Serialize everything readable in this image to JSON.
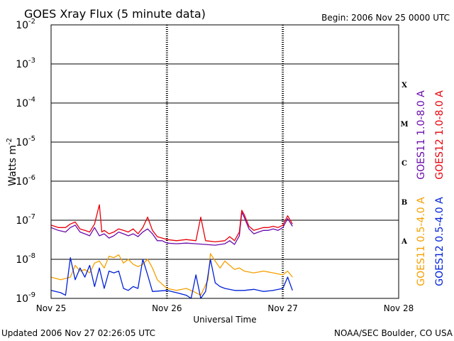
{
  "chart_data": {
    "type": "line",
    "title": "GOES Xray Flux (5 minute data)",
    "begin_label": "Begin:  2006 Nov 25 0000 UTC",
    "xlabel": "Universal Time",
    "ylabel_base": "Watts m",
    "ylabel_exp": "-2",
    "footer_left": "Updated 2006 Nov 27 02:26:05 UTC",
    "footer_right": "NOAA/SEC Boulder, CO USA",
    "scale": "log",
    "ylim": [
      1e-09,
      0.01
    ],
    "xlim": [
      "2006-11-25 00:00",
      "2006-11-28 00:00"
    ],
    "x_ticks": [
      "Nov 25",
      "Nov 26",
      "Nov 27",
      "Nov 28"
    ],
    "y_ticks": [
      {
        "value": 1e-09,
        "base": "10",
        "exp": "-9"
      },
      {
        "value": 1e-08,
        "base": "10",
        "exp": "-8"
      },
      {
        "value": 1e-07,
        "base": "10",
        "exp": "-7"
      },
      {
        "value": 1e-06,
        "base": "10",
        "exp": "-6"
      },
      {
        "value": 1e-05,
        "base": "10",
        "exp": "-5"
      },
      {
        "value": 0.0001,
        "base": "10",
        "exp": "-4"
      },
      {
        "value": 0.001,
        "base": "10",
        "exp": "-3"
      },
      {
        "value": 0.01,
        "base": "10",
        "exp": "-2"
      }
    ],
    "flare_classes": [
      {
        "label": "A",
        "level": 3e-08
      },
      {
        "label": "B",
        "level": 3e-07
      },
      {
        "label": "C",
        "level": 3e-06
      },
      {
        "label": "M",
        "level": 3e-05
      },
      {
        "label": "X",
        "level": 0.0003
      }
    ],
    "grid": "horizontal lines at each decade from 1e-8 to 1e-3; dotted vertical lines at day boundaries",
    "series": [
      {
        "name": "GOES11 1.0-8.0 A",
        "color": "#6a0dad",
        "points": [
          [
            "2006-11-25 00:00",
            6.5e-08
          ],
          [
            "2006-11-25 01:30",
            5.5e-08
          ],
          [
            "2006-11-25 03:00",
            5e-08
          ],
          [
            "2006-11-25 04:00",
            6.5e-08
          ],
          [
            "2006-11-25 05:00",
            7.5e-08
          ],
          [
            "2006-11-25 06:00",
            5e-08
          ],
          [
            "2006-11-25 07:00",
            4.5e-08
          ],
          [
            "2006-11-25 08:00",
            4e-08
          ],
          [
            "2006-11-25 09:00",
            6.5e-08
          ],
          [
            "2006-11-25 10:00",
            4e-08
          ],
          [
            "2006-11-25 11:00",
            4.5e-08
          ],
          [
            "2006-11-25 12:00",
            3.5e-08
          ],
          [
            "2006-11-25 13:00",
            4e-08
          ],
          [
            "2006-11-25 14:00",
            5e-08
          ],
          [
            "2006-11-25 15:00",
            4.5e-08
          ],
          [
            "2006-11-25 16:00",
            4e-08
          ],
          [
            "2006-11-25 17:00",
            4.5e-08
          ],
          [
            "2006-11-25 18:00",
            3.8e-08
          ],
          [
            "2006-11-25 19:00",
            5e-08
          ],
          [
            "2006-11-25 20:00",
            6e-08
          ],
          [
            "2006-11-25 21:00",
            4.5e-08
          ],
          [
            "2006-11-25 22:00",
            3e-08
          ],
          [
            "2006-11-25 23:00",
            3e-08
          ],
          [
            "2006-11-26 00:00",
            2.6e-08
          ],
          [
            "2006-11-26 02:00",
            2.5e-08
          ],
          [
            "2006-11-26 04:00",
            2.6e-08
          ],
          [
            "2006-11-26 06:00",
            2.5e-08
          ],
          [
            "2006-11-26 08:00",
            2.4e-08
          ],
          [
            "2006-11-26 10:00",
            2.3e-08
          ],
          [
            "2006-11-26 12:00",
            2.5e-08
          ],
          [
            "2006-11-26 13:00",
            3e-08
          ],
          [
            "2006-11-26 14:00",
            2.4e-08
          ],
          [
            "2006-11-26 15:00",
            4e-08
          ],
          [
            "2006-11-26 15:30",
            1.6e-07
          ],
          [
            "2006-11-26 16:00",
            1.2e-07
          ],
          [
            "2006-11-26 17:00",
            6e-08
          ],
          [
            "2006-11-26 18:00",
            4.5e-08
          ],
          [
            "2006-11-26 19:00",
            5e-08
          ],
          [
            "2006-11-26 20:00",
            5.5e-08
          ],
          [
            "2006-11-26 21:00",
            5.5e-08
          ],
          [
            "2006-11-26 22:00",
            6e-08
          ],
          [
            "2006-11-26 23:00",
            5.5e-08
          ],
          [
            "2006-11-27 00:00",
            6.5e-08
          ],
          [
            "2006-11-27 01:00",
            1.1e-07
          ],
          [
            "2006-11-27 02:00",
            7e-08
          ]
        ]
      },
      {
        "name": "GOES12 1.0-8.0 A",
        "color": "#e8000b",
        "points": [
          [
            "2006-11-25 00:00",
            7.5e-08
          ],
          [
            "2006-11-25 01:30",
            6.5e-08
          ],
          [
            "2006-11-25 03:00",
            6.5e-08
          ],
          [
            "2006-11-25 04:00",
            8e-08
          ],
          [
            "2006-11-25 05:00",
            9e-08
          ],
          [
            "2006-11-25 06:00",
            6e-08
          ],
          [
            "2006-11-25 07:00",
            5.5e-08
          ],
          [
            "2006-11-25 08:00",
            5e-08
          ],
          [
            "2006-11-25 09:00",
            8e-08
          ],
          [
            "2006-11-25 10:00",
            2.5e-07
          ],
          [
            "2006-11-25 10:30",
            5e-08
          ],
          [
            "2006-11-25 11:00",
            5.5e-08
          ],
          [
            "2006-11-25 12:00",
            4.5e-08
          ],
          [
            "2006-11-25 13:00",
            5e-08
          ],
          [
            "2006-11-25 14:00",
            6e-08
          ],
          [
            "2006-11-25 15:00",
            5.5e-08
          ],
          [
            "2006-11-25 16:00",
            5e-08
          ],
          [
            "2006-11-25 17:00",
            6e-08
          ],
          [
            "2006-11-25 18:00",
            4.5e-08
          ],
          [
            "2006-11-25 19:00",
            6.5e-08
          ],
          [
            "2006-11-25 20:00",
            1.2e-07
          ],
          [
            "2006-11-25 21:00",
            5.5e-08
          ],
          [
            "2006-11-25 22:00",
            3.8e-08
          ],
          [
            "2006-11-25 23:00",
            3.5e-08
          ],
          [
            "2006-11-26 00:00",
            3.2e-08
          ],
          [
            "2006-11-26 02:00",
            3e-08
          ],
          [
            "2006-11-26 04:00",
            3.2e-08
          ],
          [
            "2006-11-26 06:00",
            3e-08
          ],
          [
            "2006-11-26 07:00",
            1.2e-07
          ],
          [
            "2006-11-26 08:00",
            3e-08
          ],
          [
            "2006-11-26 10:00",
            2.8e-08
          ],
          [
            "2006-11-26 12:00",
            3e-08
          ],
          [
            "2006-11-26 13:00",
            3.8e-08
          ],
          [
            "2006-11-26 14:00",
            3e-08
          ],
          [
            "2006-11-26 15:00",
            5e-08
          ],
          [
            "2006-11-26 15:30",
            1.8e-07
          ],
          [
            "2006-11-26 16:00",
            1.4e-07
          ],
          [
            "2006-11-26 17:00",
            7e-08
          ],
          [
            "2006-11-26 18:00",
            5.5e-08
          ],
          [
            "2006-11-26 19:00",
            6e-08
          ],
          [
            "2006-11-26 20:00",
            6.5e-08
          ],
          [
            "2006-11-26 21:00",
            6.5e-08
          ],
          [
            "2006-11-26 22:00",
            7e-08
          ],
          [
            "2006-11-26 23:00",
            6.5e-08
          ],
          [
            "2006-11-27 00:00",
            7.5e-08
          ],
          [
            "2006-11-27 01:00",
            1.3e-07
          ],
          [
            "2006-11-27 02:00",
            8e-08
          ]
        ]
      },
      {
        "name": "GOES11 0.5-4.0 A",
        "color": "#f5a000",
        "points": [
          [
            "2006-11-25 00:00",
            3.5e-09
          ],
          [
            "2006-11-25 02:00",
            3e-09
          ],
          [
            "2006-11-25 04:00",
            3.5e-09
          ],
          [
            "2006-11-25 05:00",
            7e-09
          ],
          [
            "2006-11-25 06:00",
            5e-09
          ],
          [
            "2006-11-25 07:00",
            5.5e-09
          ],
          [
            "2006-11-25 08:00",
            4.5e-09
          ],
          [
            "2006-11-25 09:00",
            8e-09
          ],
          [
            "2006-11-25 10:00",
            9e-09
          ],
          [
            "2006-11-25 11:00",
            6e-09
          ],
          [
            "2006-11-25 12:00",
            1.2e-08
          ],
          [
            "2006-11-25 13:00",
            1.1e-08
          ],
          [
            "2006-11-25 14:00",
            1.3e-08
          ],
          [
            "2006-11-25 15:00",
            8e-09
          ],
          [
            "2006-11-25 16:00",
            1e-08
          ],
          [
            "2006-11-25 17:00",
            7.5e-09
          ],
          [
            "2006-11-25 18:00",
            6.5e-09
          ],
          [
            "2006-11-25 19:00",
            7.5e-09
          ],
          [
            "2006-11-25 20:00",
            1e-08
          ],
          [
            "2006-11-25 21:00",
            6e-09
          ],
          [
            "2006-11-25 22:00",
            3e-09
          ],
          [
            "2006-11-26 00:00",
            1.8e-09
          ],
          [
            "2006-11-26 02:00",
            1.6e-09
          ],
          [
            "2006-11-26 04:00",
            1.8e-09
          ],
          [
            "2006-11-26 05:30",
            1.5e-09
          ],
          [
            "2006-11-26 07:00",
            1.2e-09
          ],
          [
            "2006-11-26 08:30",
            3e-09
          ],
          [
            "2006-11-26 09:00",
            1.4e-08
          ],
          [
            "2006-11-26 10:00",
            9e-09
          ],
          [
            "2006-11-26 11:00",
            6e-09
          ],
          [
            "2006-11-26 12:00",
            9e-09
          ],
          [
            "2006-11-26 13:00",
            7e-09
          ],
          [
            "2006-11-26 14:00",
            5.5e-09
          ],
          [
            "2006-11-26 15:00",
            6e-09
          ],
          [
            "2006-11-26 16:00",
            5e-09
          ],
          [
            "2006-11-26 18:00",
            4.5e-09
          ],
          [
            "2006-11-26 20:00",
            5e-09
          ],
          [
            "2006-11-26 22:00",
            4.5e-09
          ],
          [
            "2006-11-27 00:00",
            4e-09
          ],
          [
            "2006-11-27 01:00",
            5e-09
          ],
          [
            "2006-11-27 02:00",
            3.5e-09
          ]
        ]
      },
      {
        "name": "GOES12 0.5-4.0 A",
        "color": "#0020d8",
        "points": [
          [
            "2006-11-25 00:00",
            1.6e-09
          ],
          [
            "2006-11-25 02:00",
            1.4e-09
          ],
          [
            "2006-11-25 03:00",
            1.2e-09
          ],
          [
            "2006-11-25 04:00",
            1.1e-08
          ],
          [
            "2006-11-25 05:00",
            3e-09
          ],
          [
            "2006-11-25 06:00",
            6e-09
          ],
          [
            "2006-11-25 07:00",
            3.5e-09
          ],
          [
            "2006-11-25 08:00",
            7e-09
          ],
          [
            "2006-11-25 09:00",
            2e-09
          ],
          [
            "2006-11-25 10:00",
            6e-09
          ],
          [
            "2006-11-25 11:00",
            1.8e-09
          ],
          [
            "2006-11-25 12:00",
            5e-09
          ],
          [
            "2006-11-25 13:00",
            4.5e-09
          ],
          [
            "2006-11-25 14:00",
            5e-09
          ],
          [
            "2006-11-25 15:00",
            1.8e-09
          ],
          [
            "2006-11-25 16:00",
            1.6e-09
          ],
          [
            "2006-11-25 17:00",
            2e-09
          ],
          [
            "2006-11-25 18:00",
            1.8e-09
          ],
          [
            "2006-11-25 19:00",
            1e-08
          ],
          [
            "2006-11-25 20:00",
            4e-09
          ],
          [
            "2006-11-25 21:00",
            1.5e-09
          ],
          [
            "2006-11-26 00:00",
            1.6e-09
          ],
          [
            "2006-11-26 02:00",
            1.4e-09
          ],
          [
            "2006-11-26 04:00",
            1.2e-09
          ],
          [
            "2006-11-26 05:00",
            1e-09
          ],
          [
            "2006-11-26 06:00",
            4e-09
          ],
          [
            "2006-11-26 07:00",
            1e-09
          ],
          [
            "2006-11-26 08:00",
            1.5e-09
          ],
          [
            "2006-11-26 09:00",
            1e-08
          ],
          [
            "2006-11-26 10:00",
            2.5e-09
          ],
          [
            "2006-11-26 11:00",
            2e-09
          ],
          [
            "2006-11-26 12:00",
            1.8e-09
          ],
          [
            "2006-11-26 14:00",
            1.6e-09
          ],
          [
            "2006-11-26 16:00",
            1.6e-09
          ],
          [
            "2006-11-26 18:00",
            1.7e-09
          ],
          [
            "2006-11-26 20:00",
            1.5e-09
          ],
          [
            "2006-11-26 22:00",
            1.6e-09
          ],
          [
            "2006-11-27 00:00",
            1.8e-09
          ],
          [
            "2006-11-27 01:00",
            3.5e-09
          ],
          [
            "2006-11-27 02:00",
            1.6e-09
          ]
        ]
      }
    ]
  }
}
